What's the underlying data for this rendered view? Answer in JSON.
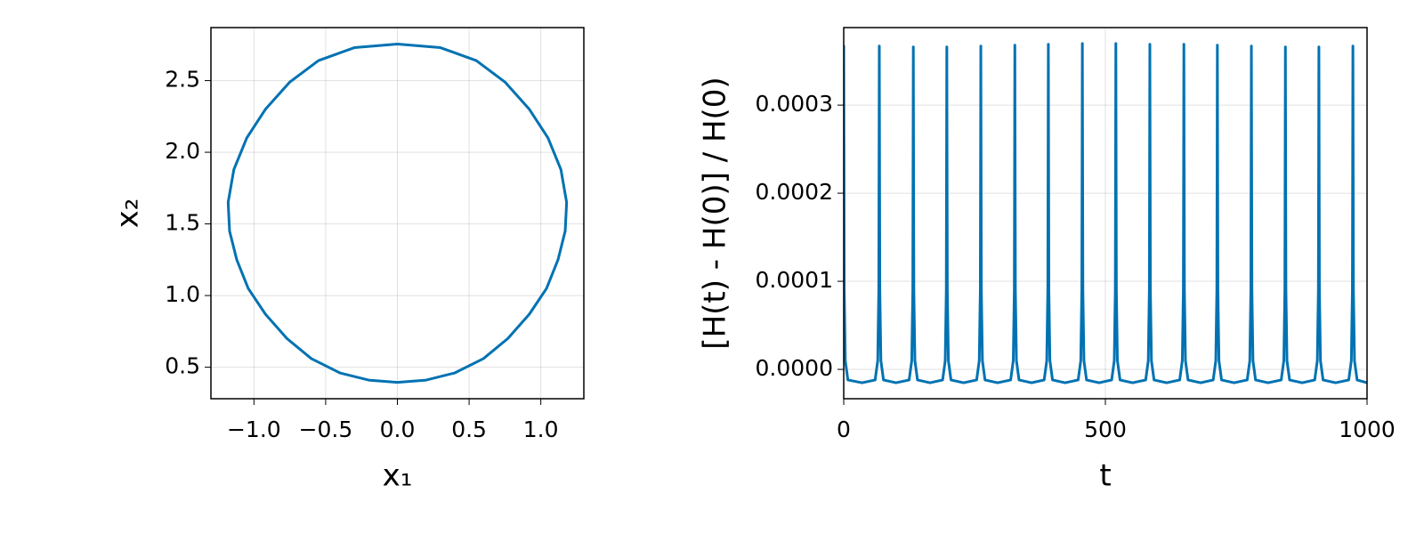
{
  "chart_data": [
    {
      "type": "line",
      "xlabel": "x₁",
      "ylabel": "x₂",
      "color": "#0072b2",
      "grid": true,
      "x": [
        0,
        0.3,
        0.55,
        0.75,
        0.92,
        1.05,
        1.14,
        1.18,
        1.17,
        1.12,
        1.04,
        0.92,
        0.77,
        0.6,
        0.4,
        0.2,
        0,
        -0.2,
        -0.4,
        -0.6,
        -0.77,
        -0.92,
        -1.04,
        -1.12,
        -1.17,
        -1.18,
        -1.14,
        -1.05,
        -0.92,
        -0.75,
        -0.55,
        -0.3,
        0
      ],
      "values": [
        2.755,
        2.73,
        2.64,
        2.49,
        2.3,
        2.1,
        1.88,
        1.65,
        1.45,
        1.25,
        1.05,
        0.87,
        0.7,
        0.56,
        0.46,
        0.41,
        0.394,
        0.41,
        0.46,
        0.56,
        0.7,
        0.87,
        1.05,
        1.25,
        1.45,
        1.65,
        1.88,
        2.1,
        2.3,
        2.49,
        2.64,
        2.73,
        2.755
      ],
      "xlim": [
        -1.3,
        1.3
      ],
      "xticks": [
        {
          "value": -1.0,
          "label": "−1.0"
        },
        {
          "value": -0.5,
          "label": "−0.5"
        },
        {
          "value": 0,
          "label": "0.0"
        },
        0.5,
        {
          "value": 1.0,
          "label": "1.0"
        }
      ],
      "ylim": [
        0.28,
        2.87
      ],
      "yticks": [
        0.5,
        {
          "value": 1.0,
          "label": "1.0"
        },
        1.5,
        {
          "value": 2.0,
          "label": "2.0"
        },
        2.5
      ]
    },
    {
      "type": "line",
      "xlabel": "t",
      "ylabel": "[H(t) - H(0)] / H(0)",
      "color": "#0072b2",
      "grid": true,
      "x": [
        0,
        1,
        3,
        8,
        35,
        60,
        65,
        67,
        68,
        69,
        71,
        76,
        100,
        125,
        130,
        132,
        133,
        134,
        136,
        141,
        165,
        189,
        194,
        196,
        197,
        198,
        200,
        205,
        229,
        254,
        259,
        261,
        262,
        263,
        265,
        270,
        294,
        319,
        324,
        326,
        327,
        328,
        330,
        335,
        359,
        383,
        388,
        390,
        391,
        392,
        394,
        399,
        423,
        448,
        453,
        455,
        456,
        457,
        459,
        464,
        488,
        512,
        517,
        519,
        520,
        521,
        523,
        528,
        552,
        577,
        582,
        584,
        585,
        586,
        588,
        593,
        617,
        642,
        647,
        649,
        650,
        651,
        653,
        658,
        682,
        706,
        711,
        713,
        714,
        715,
        717,
        722,
        746,
        771,
        776,
        778,
        779,
        780,
        782,
        787,
        811,
        836,
        841,
        843,
        844,
        845,
        847,
        852,
        876,
        900,
        905,
        907,
        908,
        909,
        911,
        916,
        940,
        965,
        970,
        972,
        973,
        974,
        976,
        981,
        1000
      ],
      "values": [
        0.000368,
        9e-05,
        1e-05,
        -1.2e-05,
        -1.52e-05,
        -1.2e-05,
        1e-05,
        9e-05,
        0.000367,
        9e-05,
        1e-05,
        -1.2e-05,
        -1.52e-05,
        -1.2e-05,
        1e-05,
        9e-05,
        0.000366,
        9e-05,
        1e-05,
        -1.2e-05,
        -1.52e-05,
        -1.2e-05,
        1e-05,
        9e-05,
        0.000366,
        9e-05,
        1e-05,
        -1.2e-05,
        -1.52e-05,
        -1.2e-05,
        1e-05,
        9e-05,
        0.000367,
        9e-05,
        1e-05,
        -1.2e-05,
        -1.52e-05,
        -1.2e-05,
        1e-05,
        9e-05,
        0.000368,
        9e-05,
        1e-05,
        -1.2e-05,
        -1.52e-05,
        -1.2e-05,
        1e-05,
        9e-05,
        0.000369,
        9e-05,
        1e-05,
        -1.2e-05,
        -1.52e-05,
        -1.2e-05,
        1e-05,
        9e-05,
        0.00037,
        9e-05,
        1e-05,
        -1.2e-05,
        -1.52e-05,
        -1.2e-05,
        1e-05,
        9e-05,
        0.00037,
        9e-05,
        1e-05,
        -1.2e-05,
        -1.52e-05,
        -1.2e-05,
        1e-05,
        9e-05,
        0.000369,
        9e-05,
        1e-05,
        -1.2e-05,
        -1.52e-05,
        -1.2e-05,
        1e-05,
        9e-05,
        0.000369,
        9e-05,
        1e-05,
        -1.2e-05,
        -1.52e-05,
        -1.2e-05,
        1e-05,
        9e-05,
        0.000368,
        9e-05,
        1e-05,
        -1.2e-05,
        -1.52e-05,
        -1.2e-05,
        1e-05,
        9e-05,
        0.000367,
        9e-05,
        1e-05,
        -1.2e-05,
        -1.52e-05,
        -1.2e-05,
        1e-05,
        9e-05,
        0.000366,
        9e-05,
        1e-05,
        -1.2e-05,
        -1.52e-05,
        -1.2e-05,
        1e-05,
        9e-05,
        0.000366,
        9e-05,
        1e-05,
        -1.2e-05,
        -1.52e-05,
        -1.2e-05,
        1e-05,
        9e-05,
        0.000367,
        9e-05,
        1e-05,
        -1.2e-05,
        -1.52e-05
      ],
      "xlim": [
        0,
        1000
      ],
      "xticks": [
        0,
        500,
        1000
      ],
      "ylim": [
        -3.33e-05,
        0.000388
      ],
      "yticks": [
        {
          "value": 0,
          "label": "0.0000"
        },
        {
          "value": 0.0001,
          "label": "0.0001"
        },
        {
          "value": 0.0002,
          "label": "0.0002"
        },
        {
          "value": 0.0003,
          "label": "0.0003"
        }
      ]
    }
  ]
}
